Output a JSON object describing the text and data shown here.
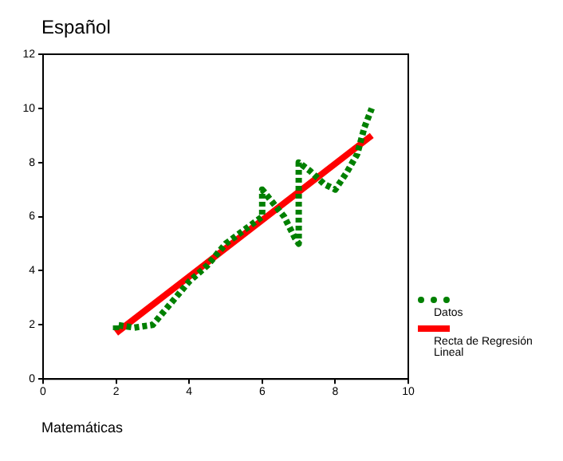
{
  "chart_data": {
    "type": "line",
    "ylabel": "Español",
    "xlabel": "Matemáticas",
    "xlim": [
      0,
      10
    ],
    "xticks": [
      0,
      2,
      4,
      6,
      8,
      10
    ],
    "ylim": [
      0,
      12
    ],
    "yticks": [
      0,
      2,
      4,
      6,
      8,
      10,
      12
    ],
    "grid": false,
    "legend": "right",
    "series": [
      {
        "name": "Datos",
        "color": "#008000",
        "line_style": "dotted",
        "x": [
          2,
          2,
          2.5,
          3,
          3.5,
          4,
          4.5,
          5,
          5.5,
          6,
          6,
          6.3,
          6.6,
          6.9,
          7,
          7,
          7.3,
          7.7,
          8,
          8.3,
          8.6,
          8.8,
          9
        ],
        "values": [
          1.8,
          2,
          1.9,
          2,
          2.8,
          3.6,
          4.2,
          5,
          5.5,
          6,
          7,
          6.5,
          6,
          5.2,
          5,
          8,
          7.7,
          7.2,
          7,
          7.6,
          8.3,
          9.3,
          10
        ]
      },
      {
        "name": "Recta de Regresión Lineal",
        "color": "#ff0000",
        "line_style": "solid",
        "x": [
          2,
          9
        ],
        "values": [
          1.7,
          9
        ]
      }
    ]
  }
}
